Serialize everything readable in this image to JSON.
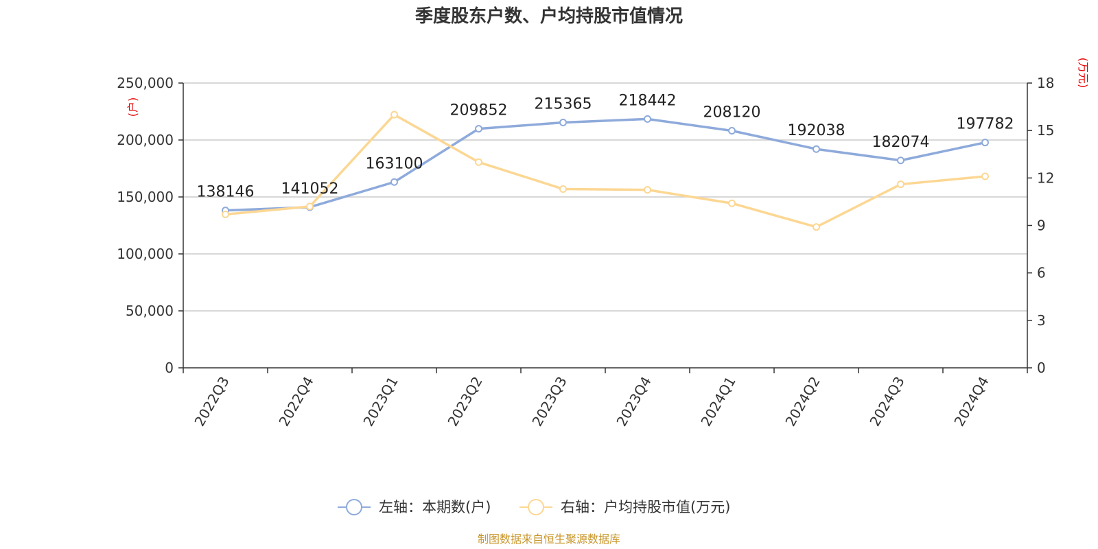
{
  "chart_data": {
    "type": "line",
    "title": "季度股东户数、户均持股市值情况",
    "categories": [
      "2022Q3",
      "2022Q4",
      "2023Q1",
      "2023Q2",
      "2023Q3",
      "2023Q4",
      "2024Q1",
      "2024Q2",
      "2024Q3",
      "2024Q4"
    ],
    "left_axis": {
      "unit": "(户)",
      "min": 0,
      "max": 250000,
      "ticks": [
        "0",
        "50,000",
        "100,000",
        "150,000",
        "200,000",
        "250,000"
      ],
      "tick_values": [
        0,
        50000,
        100000,
        150000,
        200000,
        250000
      ]
    },
    "right_axis": {
      "unit": "(万元)",
      "min": 0,
      "max": 18,
      "ticks": [
        "0",
        "3",
        "6",
        "9",
        "12",
        "15",
        "18"
      ],
      "tick_values": [
        0,
        3,
        6,
        9,
        12,
        15,
        18
      ]
    },
    "series": [
      {
        "name": "左轴：本期数(户)",
        "axis": "left",
        "color": "#8eaadb",
        "values": [
          138146,
          141052,
          163100,
          209852,
          215365,
          218442,
          208120,
          192038,
          182074,
          197782
        ],
        "labels": [
          "138146",
          "141052",
          "163100",
          "209852",
          "215365",
          "218442",
          "208120",
          "192038",
          "182074",
          "197782"
        ]
      },
      {
        "name": "右轴：户均持股市值(万元)",
        "axis": "right",
        "color": "#fcd793",
        "values": [
          9.7,
          10.2,
          16.0,
          13.0,
          11.3,
          11.25,
          10.4,
          8.9,
          11.6,
          12.1
        ]
      }
    ],
    "grid": true,
    "legend_position": "bottom",
    "unit_color": "#e60000"
  },
  "source": {
    "text": "制图数据来自恒生聚源数据库",
    "color": "#c8962a"
  }
}
